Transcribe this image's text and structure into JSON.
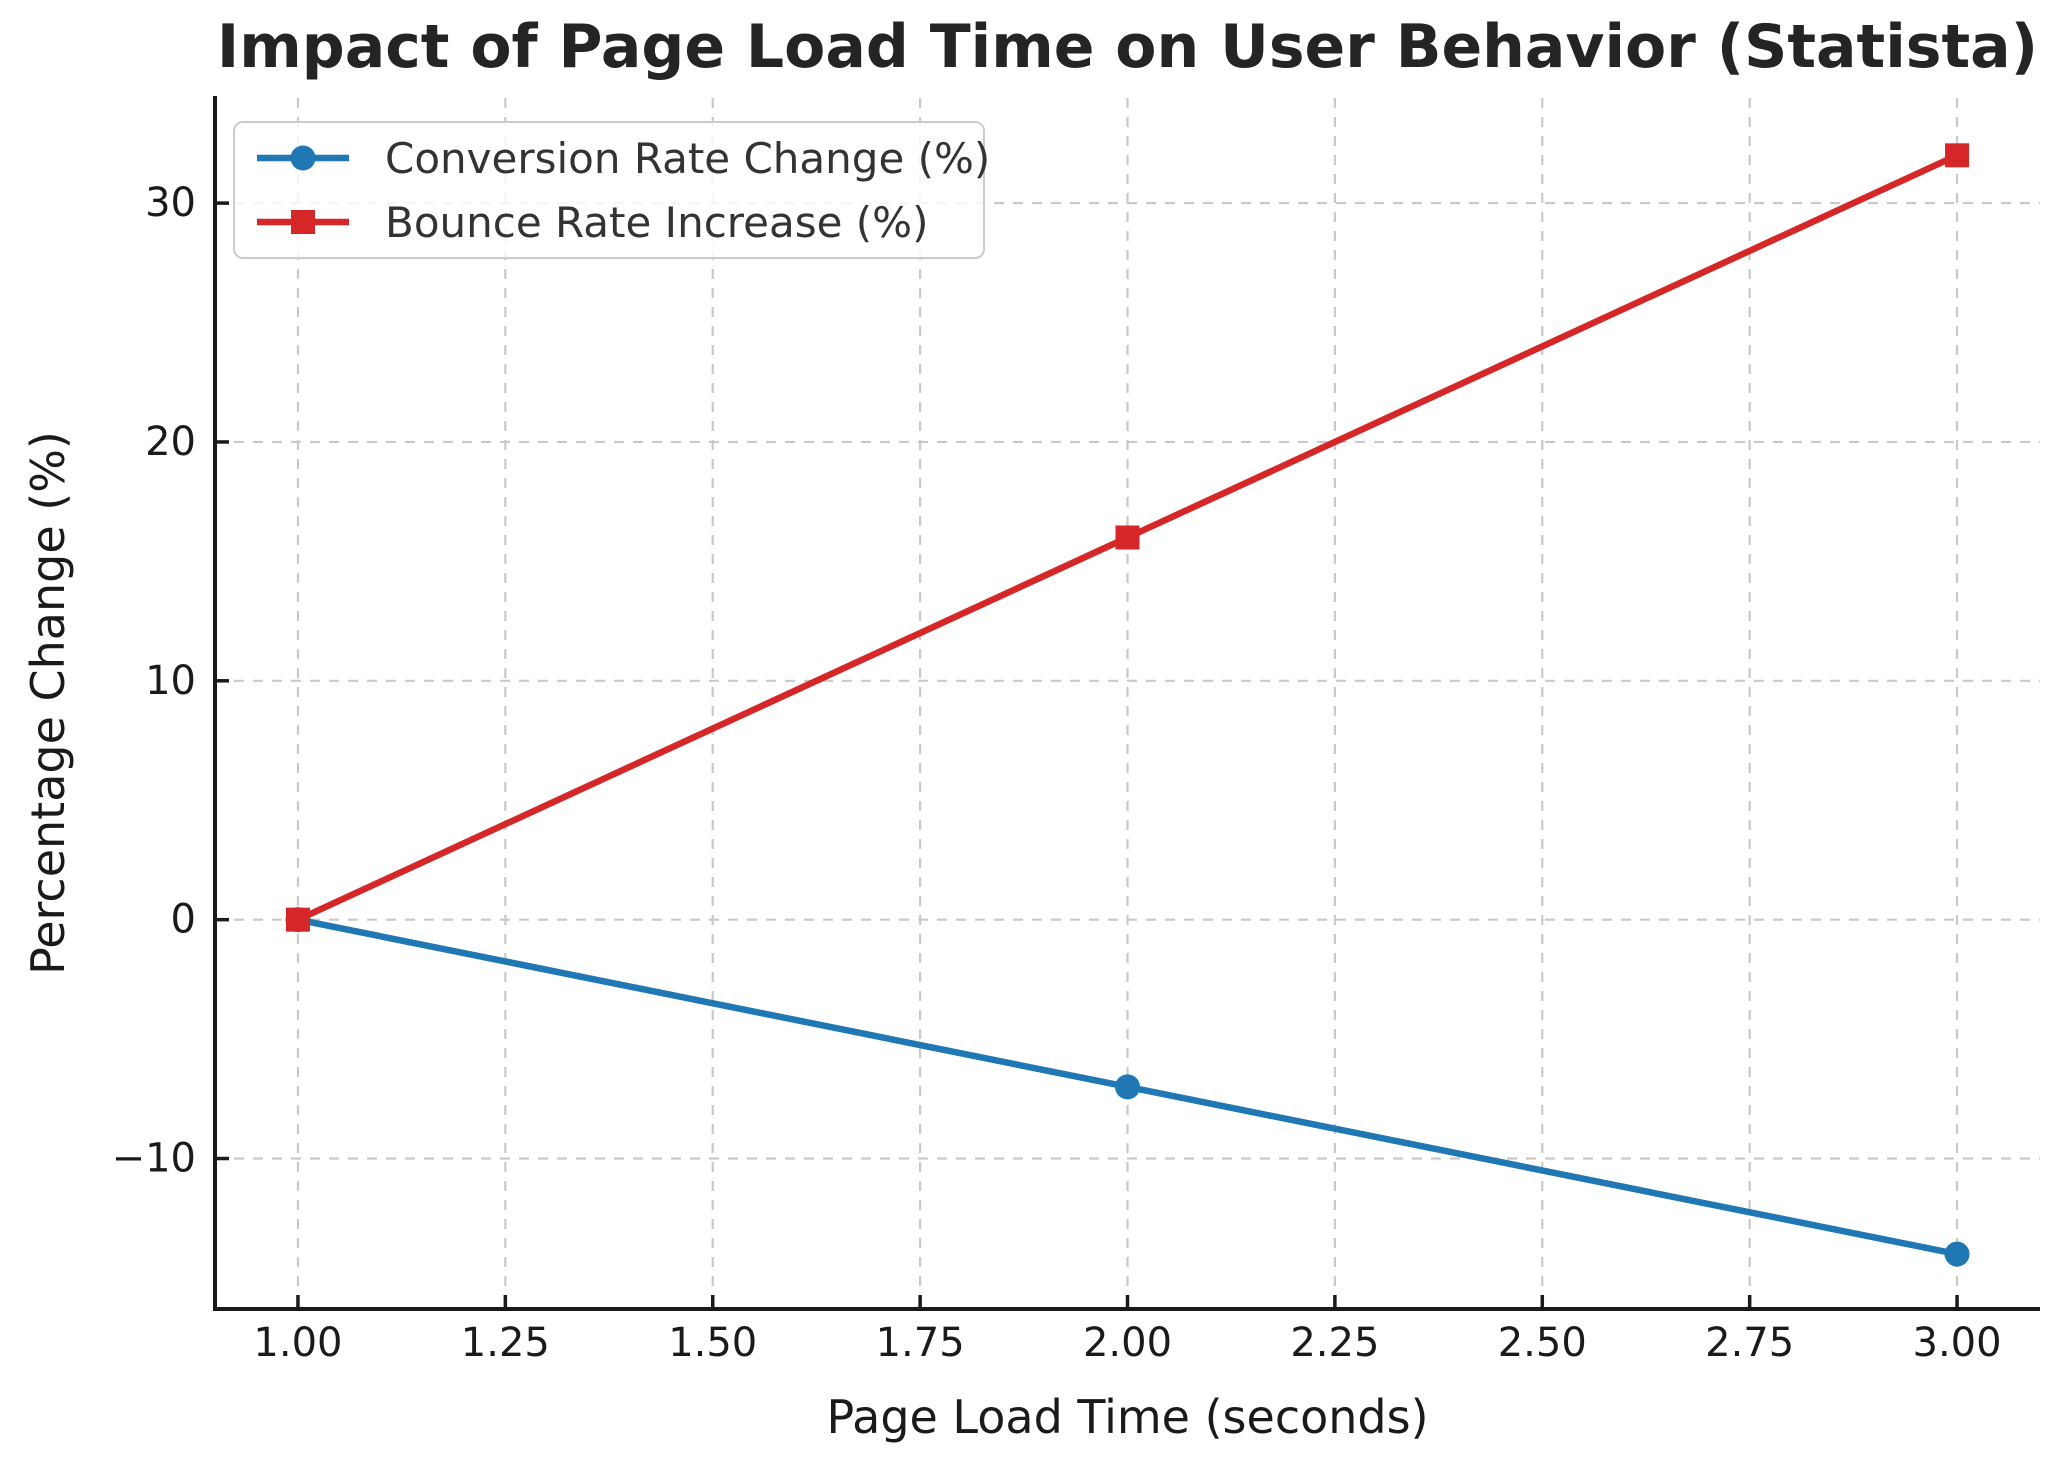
{
  "chart_data": {
    "type": "line",
    "title": "Impact of Page Load Time on User Behavior (Statista)",
    "xlabel": "Page Load Time (seconds)",
    "ylabel": "Percentage Change (%)",
    "x": [
      1.0,
      2.0,
      3.0
    ],
    "series": [
      {
        "name": "Conversion Rate Change (%)",
        "marker": "circle",
        "color": "#1f77b4",
        "values": [
          0,
          -7,
          -14
        ]
      },
      {
        "name": "Bounce Rate Increase (%)",
        "marker": "square",
        "color": "#d62728",
        "values": [
          0,
          16,
          32
        ]
      }
    ],
    "x_ticks": {
      "values": [
        1.0,
        1.25,
        1.5,
        1.75,
        2.0,
        2.25,
        2.5,
        2.75,
        3.0
      ],
      "labels": [
        "1.00",
        "1.25",
        "1.50",
        "1.75",
        "2.00",
        "2.25",
        "2.50",
        "2.75",
        "3.00"
      ]
    },
    "y_ticks": {
      "values": [
        30,
        20,
        10,
        0,
        -10
      ],
      "labels": [
        "30",
        "20",
        "10",
        "0",
        "−10"
      ]
    },
    "xlim": [
      0.9,
      3.1
    ],
    "ylim": [
      -16.3,
      34.4
    ],
    "grid": true,
    "grid_style": "dashed",
    "legend_position": "upper-left",
    "colors": {
      "grid": "#c9c9c9",
      "spine": "#1a1a1a",
      "tick_text": "#1a1a1a",
      "title_text": "#242424",
      "background": "#ffffff"
    }
  }
}
